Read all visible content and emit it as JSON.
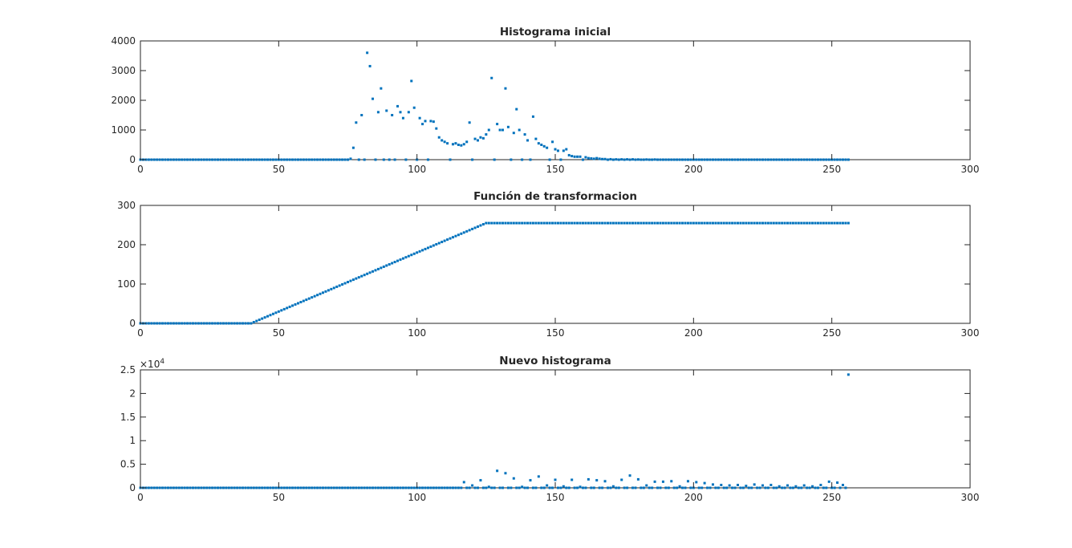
{
  "figure": {
    "background": "#ffffff",
    "marker_color": "#0072bd"
  },
  "chart_data": [
    {
      "type": "scatter",
      "title": "Histograma inicial",
      "xlabel": "",
      "ylabel": "",
      "xlim": [
        0,
        300
      ],
      "ylim": [
        0,
        4000
      ],
      "xticks": [
        0,
        50,
        100,
        150,
        200,
        250,
        300
      ],
      "yticks": [
        0,
        1000,
        2000,
        3000,
        4000
      ],
      "xtick_labels": [
        "0",
        "50",
        "100",
        "150",
        "200",
        "250",
        "300"
      ],
      "ytick_labels": [
        "0",
        "1000",
        "2000",
        "3000",
        "4000"
      ],
      "exponent_label": "",
      "grid": false,
      "series": [
        {
          "name": "histograma inicial",
          "x": [
            76,
            77,
            78,
            79,
            80,
            81,
            82,
            83,
            84,
            85,
            86,
            87,
            88,
            89,
            90,
            91,
            92,
            93,
            94,
            95,
            96,
            97,
            98,
            99,
            100,
            101,
            102,
            103,
            104,
            105,
            106,
            107,
            108,
            109,
            110,
            111,
            112,
            113,
            114,
            115,
            116,
            117,
            118,
            119,
            120,
            121,
            122,
            123,
            124,
            125,
            126,
            127,
            128,
            129,
            130,
            131,
            132,
            133,
            134,
            135,
            136,
            137,
            138,
            139,
            140,
            141,
            142,
            143,
            144,
            145,
            146,
            147,
            148,
            149,
            150,
            151,
            152,
            153,
            154,
            155,
            156,
            157,
            158,
            159,
            160,
            161,
            162,
            163,
            164,
            165,
            166,
            167,
            168,
            170,
            172,
            174,
            176,
            178,
            180,
            183,
            186
          ],
          "y": [
            30,
            400,
            1250,
            0,
            1500,
            0,
            3600,
            3150,
            2050,
            0,
            1600,
            2400,
            0,
            1650,
            0,
            1500,
            0,
            1800,
            1600,
            1400,
            0,
            1600,
            2650,
            1750,
            0,
            1400,
            1200,
            1300,
            0,
            1300,
            1280,
            1050,
            750,
            650,
            600,
            550,
            0,
            520,
            550,
            500,
            480,
            520,
            600,
            1250,
            0,
            700,
            650,
            750,
            720,
            850,
            1000,
            2750,
            0,
            1200,
            1000,
            1000,
            2400,
            1100,
            0,
            900,
            1700,
            1000,
            0,
            850,
            650,
            0,
            1450,
            700,
            550,
            500,
            450,
            400,
            0,
            600,
            350,
            300,
            0,
            300,
            350,
            150,
            120,
            100,
            100,
            100,
            0,
            80,
            50,
            40,
            30,
            50,
            30,
            20,
            20,
            15,
            10,
            10,
            10,
            10,
            5,
            5,
            5
          ]
        }
      ]
    },
    {
      "type": "scatter",
      "title": "Función de transformacion",
      "xlabel": "",
      "ylabel": "",
      "xlim": [
        0,
        300
      ],
      "ylim": [
        0,
        300
      ],
      "xticks": [
        0,
        50,
        100,
        150,
        200,
        250,
        300
      ],
      "yticks": [
        0,
        100,
        200,
        300
      ],
      "xtick_labels": [
        "0",
        "50",
        "100",
        "150",
        "200",
        "250",
        "300"
      ],
      "ytick_labels": [
        "0",
        "100",
        "200",
        "300"
      ],
      "exponent_label": "",
      "grid": false,
      "series": [
        {
          "name": "transformacion",
          "description": "0 for x<=40, linear ramp from (40,0) to (125,255), constant 255 up to x=256",
          "piecewise": [
            [
              0,
              0
            ],
            [
              40,
              0
            ],
            [
              125,
              255
            ],
            [
              256,
              255
            ]
          ]
        }
      ]
    },
    {
      "type": "scatter",
      "title": "Nuevo histograma",
      "xlabel": "",
      "ylabel": "",
      "xlim": [
        0,
        300
      ],
      "ylim": [
        0,
        2.5
      ],
      "xticks": [
        0,
        50,
        100,
        150,
        200,
        250,
        300
      ],
      "yticks": [
        0,
        0.5,
        1,
        1.5,
        2,
        2.5
      ],
      "xtick_labels": [
        "0",
        "50",
        "100",
        "150",
        "200",
        "250",
        "300"
      ],
      "ytick_labels": [
        "0",
        "0.5",
        "1",
        "1.5",
        "2",
        "2.5"
      ],
      "exponent_label": "×10",
      "exponent_power": "4",
      "grid": false,
      "series": [
        {
          "name": "nuevo histograma",
          "x": [
            117,
            120,
            123,
            126,
            129,
            132,
            135,
            138,
            141,
            144,
            147,
            150,
            153,
            156,
            159,
            162,
            165,
            168,
            171,
            174,
            177,
            180,
            183,
            186,
            189,
            192,
            195,
            198,
            201,
            204,
            207,
            210,
            213,
            216,
            219,
            222,
            225,
            228,
            231,
            234,
            237,
            240,
            243,
            246,
            249,
            252,
            254,
            256
          ],
          "y": [
            0.12,
            0.05,
            0.16,
            0.02,
            0.36,
            0.31,
            0.2,
            0.02,
            0.16,
            0.24,
            0.05,
            0.17,
            0.03,
            0.17,
            0.02,
            0.18,
            0.16,
            0.14,
            0.03,
            0.17,
            0.26,
            0.18,
            0.05,
            0.13,
            0.13,
            0.14,
            0.03,
            0.14,
            0.12,
            0.1,
            0.07,
            0.06,
            0.05,
            0.06,
            0.04,
            0.07,
            0.05,
            0.06,
            0.03,
            0.05,
            0.03,
            0.05,
            0.03,
            0.06,
            0.13,
            0.11,
            0.06,
            2.4
          ]
        }
      ]
    }
  ]
}
